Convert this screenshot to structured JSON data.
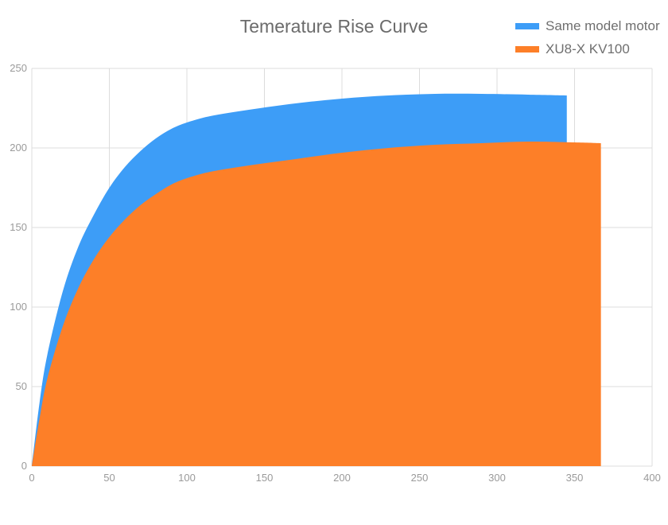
{
  "chart_data": {
    "type": "area",
    "title": "Temerature Rise Curve",
    "xlabel": "",
    "ylabel": "",
    "xlim": [
      0,
      400
    ],
    "ylim": [
      0,
      250
    ],
    "x_ticks": [
      0,
      50,
      100,
      150,
      200,
      250,
      300,
      350,
      400
    ],
    "y_ticks": [
      0,
      50,
      100,
      150,
      200,
      250
    ],
    "grid": true,
    "legend": "top-right",
    "series": [
      {
        "name": "Same model motor",
        "color": "#3d9df7",
        "x": [
          0,
          5,
          10,
          20,
          30,
          40,
          50,
          60,
          70,
          80,
          90,
          100,
          115,
          140,
          170,
          200,
          230,
          260,
          290,
          320,
          345
        ],
        "y": [
          0,
          40,
          70,
          110,
          138,
          158,
          175,
          188,
          198,
          206,
          212,
          216,
          220,
          224,
          228,
          231,
          233,
          234,
          234,
          233.5,
          233
        ]
      },
      {
        "name": "XU8-X KV100",
        "color": "#fd7f28",
        "x": [
          0,
          5,
          10,
          20,
          30,
          40,
          50,
          60,
          70,
          80,
          90,
          100,
          115,
          140,
          170,
          200,
          230,
          260,
          290,
          320,
          350,
          367
        ],
        "y": [
          0,
          30,
          55,
          88,
          112,
          130,
          144,
          155,
          164,
          171,
          177,
          181,
          185,
          189,
          193,
          197,
          200,
          202,
          203,
          204,
          203.5,
          203
        ]
      }
    ]
  }
}
